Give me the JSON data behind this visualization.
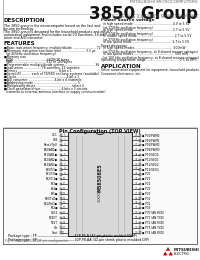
{
  "title_brand": "MITSUBISHI MICROCOMPUTERS",
  "title_main": "3850 Group",
  "subtitle": "Single-Chip 4-Bit CMOS MICROCOMPUTER",
  "bg_color": "#ffffff",
  "desc_title": "DESCRIPTION",
  "desc_lines": [
    "The 3850 group is the microcomputer based on the fast and",
    "by-one technology.",
    "The 3850 group is designed for the household products and office",
    "automation equipment and includes serial I/O functions, 16-bit",
    "timer and A/D converter."
  ],
  "feat_title": "FEATURES",
  "feat_lines": [
    "■Basic instruction frequency: multiply/divide ....................... 72",
    "■Minimum instruction execution time ....................... 3.5 μs",
    "  (at 455kHz oscillation frequency)",
    "■Memory size",
    "  ROM ................................ 4K/2K/2K bytes",
    "  RAM ................................ 512 to 160 bytes",
    "■Programmable multiply/divide system ............................. 36",
    "■Instruction ................. 78 varieties, 13 varieties",
    "■Timers ........................................ 8-bit x 1",
    "■Serial I/O ......... each of TX/RXD on those systems (available)",
    "■Clocks ................................................ 4-bit x 1",
    "■A/D converter ......................... 4-bit x 4 channels",
    "■Addressing mode ........................................... 5",
    "■Multiplexing driver ................................... select 4",
    "■Clock generator/driver ................... 4-bits x 3 circuits",
    "  (common to external antenna interface or supply communication)"
  ],
  "right_col_title": "Power source voltage",
  "right_col_lines": [
    "  in high speed mode ...................................... 4.0 to 5.5V",
    "  (at 3745Hz oscillation frequency)",
    "  in high speed mode ...................................... 2.7 to 5.5V",
    "  (at 3745Hz oscillation frequency)",
    "  in middle speed mode .................................... 2.7 to 5.5V",
    "  (at 3745Hz oscillation frequency)",
    "  in low speed mode ....................................... 2.7 to 5.5V",
    "Power dissipation",
    "  In high speed modes ..................................... 500mW",
    "  (at 3745Hz oscillation frequency, at 8 shared recover voltages)",
    "  In low speed modes ........................................ 500 mW",
    "  (at 100 kHz oscillation frequency, at 8 shared recover voltages)",
    "Operating temperature range ................................ 0°C to 85°C"
  ],
  "app_title": "APPLICATION",
  "app_lines": [
    "Office automation equipment for equipment, household products.",
    "Consumer electronics, etc."
  ],
  "pin_title": "Pin Configuration (TOP VIEW)",
  "left_pins": [
    "VCC",
    "VSS",
    "Reset/Tp0",
    "P40/AN0●",
    "P41/AN1●",
    "P42/AN2●",
    "P43/AN3●",
    "P50/TO●",
    "P51/TI0●",
    "P52/TI1●",
    "P53●",
    "P54●",
    "P55●",
    "P60/TxD●",
    "P61/RxD●",
    "P62●",
    "OSC1",
    "RESET",
    "TEST",
    "Xin",
    "Xout"
  ],
  "right_pins": [
    "● P00/PWM0",
    "● P01/PWM1",
    "● P02/PWM2",
    "● P03/PWM3",
    "● P10/SEG0",
    "● P11/SEG1",
    "● P12/SEG2",
    "● P13/SEG3",
    "● P20",
    "● P21",
    "● P22",
    "● P23",
    "● P30",
    "● P31",
    "● P32",
    "● P33",
    "● P70 (AN RXD)",
    "● P71 (AN TXD)",
    "● P72 (AN RXD)",
    "● P73 (AN TXD)",
    "● P74 (AN RXD)"
  ],
  "pkg_lines": [
    "Package type : FP ――――――――――― 42P-P5-A (42-pin plastic molded SSOP)",
    "Package type : SP ――――――――――― 42P-P8-AA (42-pin shrink plastic moulded DIP)"
  ],
  "fig_caption": "Fig. 1  M38508E5-XXXSP pin configuration",
  "chip_label": [
    "M38508E5",
    "-XXXSP"
  ]
}
